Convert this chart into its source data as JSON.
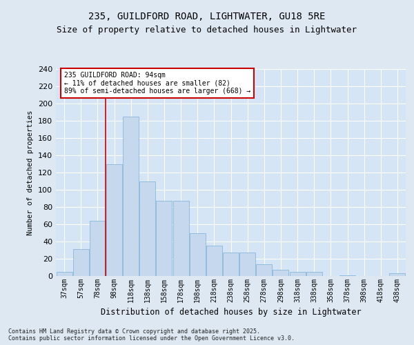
{
  "title1": "235, GUILDFORD ROAD, LIGHTWATER, GU18 5RE",
  "title2": "Size of property relative to detached houses in Lightwater",
  "xlabel": "Distribution of detached houses by size in Lightwater",
  "ylabel": "Number of detached properties",
  "categories": [
    "37sqm",
    "57sqm",
    "78sqm",
    "98sqm",
    "118sqm",
    "138sqm",
    "158sqm",
    "178sqm",
    "198sqm",
    "218sqm",
    "238sqm",
    "258sqm",
    "278sqm",
    "298sqm",
    "318sqm",
    "338sqm",
    "358sqm",
    "378sqm",
    "398sqm",
    "418sqm",
    "438sqm"
  ],
  "values": [
    5,
    31,
    64,
    130,
    185,
    110,
    87,
    87,
    50,
    35,
    27,
    27,
    14,
    7,
    5,
    5,
    0,
    1,
    0,
    0,
    3
  ],
  "bar_color": "#c5d8ed",
  "bar_edge_color": "#7bafd4",
  "annotation_line1": "235 GUILDFORD ROAD: 94sqm",
  "annotation_line2": "← 11% of detached houses are smaller (82)",
  "annotation_line3": "89% of semi-detached houses are larger (668) →",
  "vline_index": 2.5,
  "annotation_box_color": "#ffffff",
  "annotation_box_edge": "#cc0000",
  "vline_color": "#cc0000",
  "ylim": [
    0,
    240
  ],
  "yticks": [
    0,
    20,
    40,
    60,
    80,
    100,
    120,
    140,
    160,
    180,
    200,
    220,
    240
  ],
  "footer": "Contains HM Land Registry data © Crown copyright and database right 2025.\nContains public sector information licensed under the Open Government Licence v3.0.",
  "bg_color": "#dde8f3",
  "plot_bg_color": "#d5e5f5",
  "title1_fontsize": 10,
  "title2_fontsize": 9,
  "grid_color": "#ffffff"
}
